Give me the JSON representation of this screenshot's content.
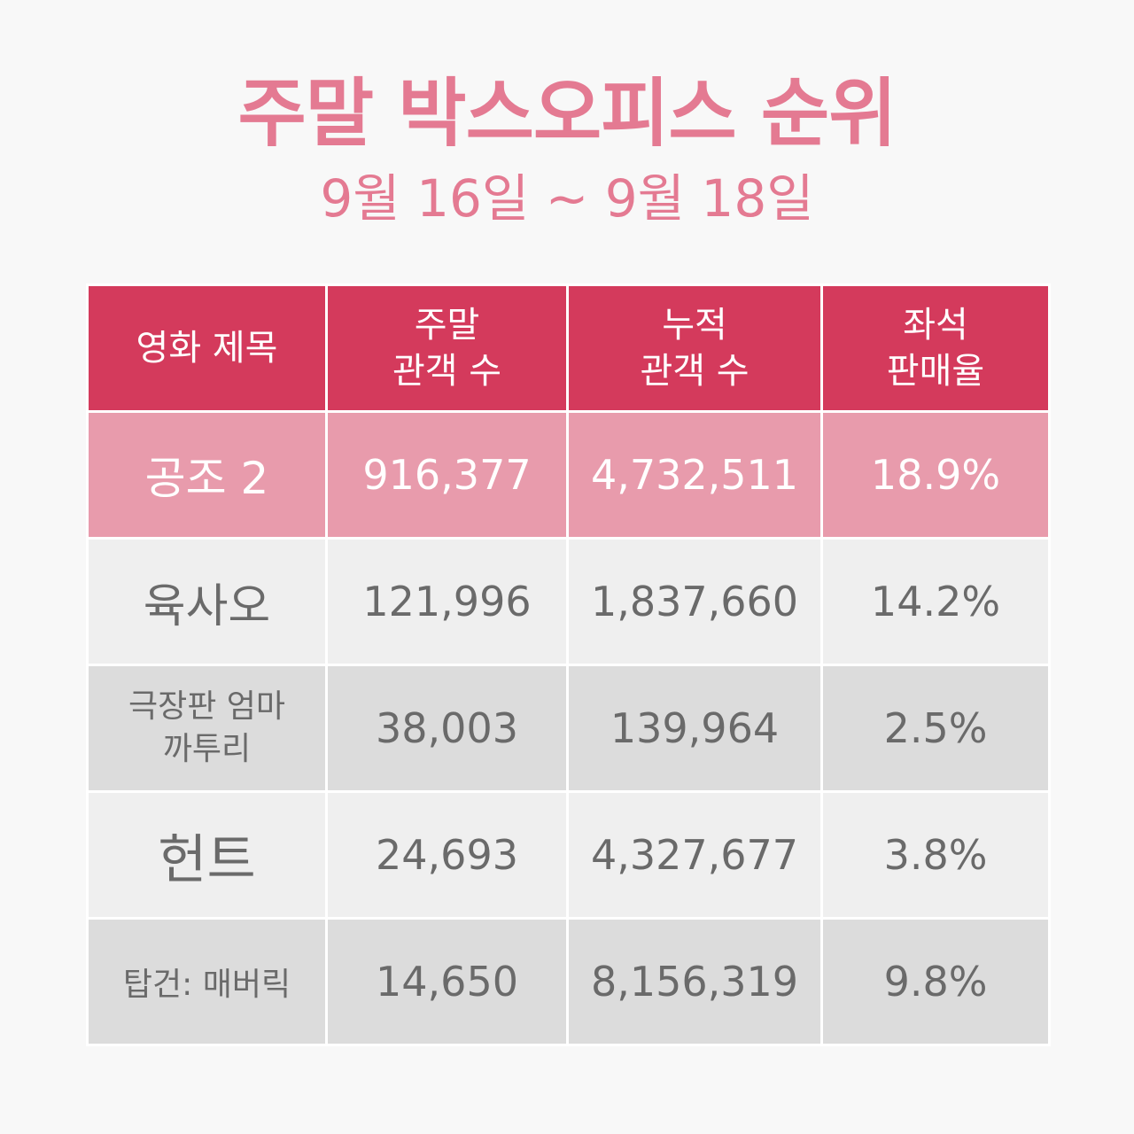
{
  "header": {
    "title": "주말 박스오피스 순위",
    "subtitle": "9월 16일 ~ 9월 18일"
  },
  "table": {
    "columns": [
      {
        "lines": [
          "영화 제목"
        ]
      },
      {
        "lines": [
          "주말",
          "관객 수"
        ]
      },
      {
        "lines": [
          "누적",
          "관객 수"
        ]
      },
      {
        "lines": [
          "좌석",
          "판매율"
        ]
      }
    ],
    "rows": [
      {
        "title_lines": [
          "공조 2"
        ],
        "weekend": "916,377",
        "cumulative": "4,732,511",
        "seat_rate": "18.9%"
      },
      {
        "title_lines": [
          "육사오"
        ],
        "weekend": "121,996",
        "cumulative": "1,837,660",
        "seat_rate": "14.2%"
      },
      {
        "title_lines": [
          "극장판 엄마",
          "까투리"
        ],
        "weekend": "38,003",
        "cumulative": "139,964",
        "seat_rate": "2.5%"
      },
      {
        "title_lines": [
          "헌트"
        ],
        "weekend": "24,693",
        "cumulative": "4,327,677",
        "seat_rate": "3.8%"
      },
      {
        "title_lines": [
          "탑건: 매버릭"
        ],
        "weekend": "14,650",
        "cumulative": "8,156,319",
        "seat_rate": "9.8%"
      }
    ]
  },
  "colors": {
    "title": "#e47a92",
    "header_bg": "#d43a5c",
    "highlight_row_bg": "#e89bac",
    "light_row_bg": "#efefef",
    "dark_row_bg": "#dcdcdc",
    "body_text": "#6a6a6a"
  }
}
